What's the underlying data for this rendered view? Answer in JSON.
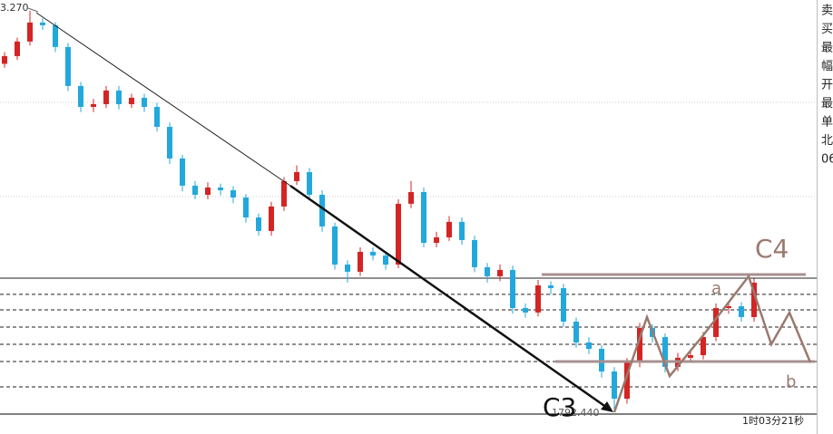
{
  "chart_data": {
    "type": "candlestick",
    "ylim": [
      1792.3,
      1824.1
    ],
    "up_color": "#d42424",
    "down_color": "#22a8dc",
    "open": [
      1819.2,
      1819.79,
      1820.91,
      1822.37,
      1822.16,
      1820.49,
      1817.5,
      1815.89,
      1816.1,
      1817.15,
      1816.1,
      1816.59,
      1815.89,
      1814.36,
      1811.93,
      1809.84,
      1809.14,
      1809.7,
      1809.49,
      1808.93,
      1807.4,
      1806.36,
      1808.24,
      1810.19,
      1810.88,
      1809.14,
      1806.71,
      1803.78,
      1803.23,
      1804.76,
      1804.48,
      1803.78,
      1808.45,
      1809.35,
      1805.45,
      1805.87,
      1807.06,
      1805.66,
      1803.58,
      1802.88,
      1803.37,
      1800.44,
      1800.1,
      1802.18,
      1801.97,
      1799.4,
      1797.8,
      1797.31,
      1795.57,
      1793.48,
      1796.27,
      1798.91,
      1798.22,
      1795.92,
      1796.62,
      1796.82,
      1798.22,
      1800.44,
      1800.58,
      1799.75
    ],
    "close": [
      1819.79,
      1820.91,
      1822.37,
      1822.16,
      1820.49,
      1817.5,
      1815.89,
      1816.1,
      1817.15,
      1816.1,
      1816.59,
      1815.89,
      1814.36,
      1811.93,
      1809.84,
      1809.14,
      1809.7,
      1809.49,
      1808.93,
      1807.4,
      1806.36,
      1808.24,
      1810.19,
      1810.88,
      1809.14,
      1806.71,
      1803.78,
      1803.23,
      1804.76,
      1804.48,
      1803.78,
      1808.45,
      1809.35,
      1805.45,
      1805.87,
      1807.06,
      1805.66,
      1803.58,
      1802.88,
      1803.37,
      1800.44,
      1800.1,
      1802.18,
      1801.97,
      1799.4,
      1797.8,
      1797.31,
      1795.57,
      1793.48,
      1796.27,
      1798.91,
      1798.22,
      1795.92,
      1796.62,
      1796.82,
      1798.22,
      1800.44,
      1800.58,
      1799.75,
      1802.39
    ],
    "high": [
      1820.1,
      1821.2,
      1823.27,
      1822.7,
      1822.4,
      1820.8,
      1817.8,
      1816.5,
      1817.5,
      1817.5,
      1816.9,
      1816.9,
      1816.2,
      1814.7,
      1812.2,
      1810.2,
      1810.1,
      1810.0,
      1809.8,
      1809.2,
      1807.7,
      1808.6,
      1810.5,
      1811.4,
      1811.2,
      1809.5,
      1807.0,
      1804.1,
      1805.1,
      1805.1,
      1804.8,
      1808.8,
      1810.2,
      1809.7,
      1806.3,
      1807.5,
      1807.4,
      1806.0,
      1803.9,
      1803.8,
      1803.7,
      1800.8,
      1802.6,
      1802.5,
      1802.3,
      1799.7,
      1798.2,
      1797.6,
      1795.9,
      1796.6,
      1799.3,
      1799.2,
      1798.5,
      1797.0,
      1797.2,
      1798.6,
      1800.8,
      1801.0,
      1800.9,
      1802.7
    ],
    "low": [
      1818.9,
      1819.5,
      1820.6,
      1821.8,
      1820.1,
      1817.1,
      1815.5,
      1815.5,
      1815.8,
      1815.7,
      1815.8,
      1815.5,
      1814.0,
      1811.5,
      1809.4,
      1808.8,
      1808.8,
      1809.1,
      1808.5,
      1807.0,
      1806.0,
      1806.0,
      1807.9,
      1809.9,
      1808.8,
      1806.3,
      1803.4,
      1802.4,
      1802.9,
      1804.1,
      1803.4,
      1803.5,
      1808.1,
      1805.1,
      1805.1,
      1805.6,
      1805.3,
      1803.2,
      1802.4,
      1802.5,
      1800.0,
      1799.7,
      1799.8,
      1801.5,
      1799.0,
      1797.4,
      1796.9,
      1795.1,
      1792.44,
      1793.1,
      1795.9,
      1797.8,
      1795.5,
      1795.6,
      1796.3,
      1796.5,
      1797.9,
      1800.0,
      1799.4,
      1799.4
    ],
    "grid_values": [
      1816.24,
      1809.0
    ],
    "hlines": [
      {
        "value": 1802.74,
        "style": "solid"
      },
      {
        "value": 1801.49,
        "style": "dashed"
      },
      {
        "value": 1800.3,
        "style": "dashed"
      },
      {
        "value": 1798.98,
        "style": "dashed"
      },
      {
        "value": 1797.66,
        "style": "dashed"
      },
      {
        "value": 1796.34,
        "style": "dashed"
      },
      {
        "value": 1794.39,
        "style": "dashed"
      }
    ],
    "max_label": "3.270",
    "min_label": "1792.440",
    "annotations": [
      "C4",
      "C3",
      "a",
      "b"
    ],
    "timer": "1时03分21秒",
    "side_panel": [
      "卖",
      "买",
      "最",
      "幅",
      "开",
      "最",
      "单",
      "北",
      "06"
    ]
  }
}
